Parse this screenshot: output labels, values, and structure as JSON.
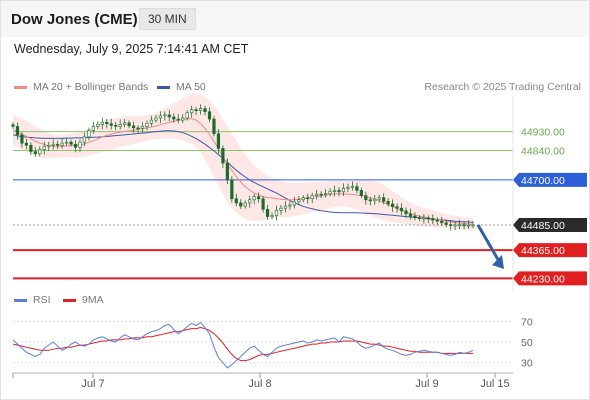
{
  "header": {
    "title": "Dow Jones (CME)",
    "timeframe": "30 MIN",
    "datetime": "Wednesday, July 9, 2025 7:14:41 AM CET"
  },
  "legend_main": {
    "ma20_label": "MA 20 + Bollinger Bands",
    "ma50_label": "MA 50",
    "credit": "Research © 2025 Trading Central"
  },
  "legend_rsi": {
    "rsi_label": "RSI",
    "ma9_label": "9MA"
  },
  "colors": {
    "ma20": "#f08a8a",
    "band_fill": "#fde3e3",
    "ma50": "#3a5ba8",
    "candle": "#1d6b2a",
    "green_level": "#8cc56b",
    "blue_level": "#2f5fd6",
    "red_level": "#e02020",
    "current_price_box": "#2a2a2a",
    "rsi_line": "#5b7fe0",
    "rsi_ma": "#e02020",
    "forecast_arrow": "#2f5fa8"
  },
  "chart_data": [
    {
      "type": "candlestick",
      "x_ticks": [
        "Jul 7",
        "Jul 8",
        "Jul 9",
        "Jul 15"
      ],
      "ylim": [
        44170,
        45100
      ],
      "levels": [
        {
          "value": 44930,
          "label": "44930.00",
          "kind": "resistance",
          "color": "#8cc56b"
        },
        {
          "value": 44840,
          "label": "44840.00",
          "kind": "resistance",
          "color": "#8cc56b"
        },
        {
          "value": 44700,
          "label": "44700.00",
          "kind": "pivot",
          "color": "#2f5fd6"
        },
        {
          "value": 44485,
          "label": "44485.00",
          "kind": "last-price",
          "color": "#2a2a2a"
        },
        {
          "value": 44365,
          "label": "44365.00",
          "kind": "support",
          "color": "#e02020"
        },
        {
          "value": 44230,
          "label": "44230.00",
          "kind": "support",
          "color": "#e02020"
        }
      ],
      "close": [
        44955,
        44915,
        44875,
        44865,
        44835,
        44825,
        44845,
        44860,
        44865,
        44870,
        44865,
        44875,
        44880,
        44870,
        44855,
        44880,
        44905,
        44935,
        44955,
        44965,
        44975,
        44968,
        44960,
        44955,
        44965,
        44972,
        44958,
        44948,
        44945,
        44955,
        44970,
        44985,
        44995,
        45005,
        45010,
        45000,
        44990,
        44985,
        44995,
        45020,
        45035,
        45030,
        45040,
        45025,
        44990,
        44920,
        44850,
        44780,
        44700,
        44610,
        44590,
        44575,
        44590,
        44605,
        44620,
        44610,
        44560,
        44525,
        44530,
        44555,
        44565,
        44575,
        44580,
        44595,
        44605,
        44615,
        44610,
        44625,
        44632,
        44630,
        44635,
        44645,
        44650,
        44643,
        44660,
        44665,
        44668,
        44650,
        44625,
        44605,
        44600,
        44608,
        44615,
        44598,
        44585,
        44572,
        44565,
        44552,
        44538,
        44527,
        44520,
        44515,
        44518,
        44515,
        44508,
        44503,
        44495,
        44487,
        44482,
        44485,
        44486,
        44482,
        44484,
        44485
      ],
      "ma20": [
        44940,
        44928,
        44918,
        44908,
        44896,
        44884,
        44876,
        44869,
        44862,
        44860,
        44860,
        44860,
        44862,
        44864,
        44865,
        44866,
        44872,
        44879,
        44887,
        44896,
        44905,
        44912,
        44918,
        44923,
        44927,
        44931,
        44934,
        44937,
        44940,
        44944,
        44948,
        44952,
        44957,
        44963,
        44969,
        44975,
        44980,
        44984,
        44988,
        44991,
        44992,
        44985,
        44968,
        44945,
        44917,
        44884,
        44848,
        44811,
        44776,
        44744,
        44715,
        44690,
        44668,
        44651,
        44638,
        44628,
        44620,
        44616,
        44614,
        44611,
        44608,
        44606,
        44605,
        44606,
        44608,
        44611,
        44614,
        44617,
        44620,
        44623,
        44626,
        44630,
        44633,
        44634,
        44633,
        44632,
        44630,
        44628,
        44625,
        44620,
        44614,
        44608,
        44600,
        44592,
        44582,
        44572,
        44563,
        44555,
        44547,
        44539,
        44532,
        44527,
        44523,
        44519,
        44515,
        44511,
        44507,
        44503,
        44499,
        44496,
        44494,
        44492,
        44490,
        44488
      ],
      "ma50": [
        44915,
        44910,
        44906,
        44904,
        44902,
        44900,
        44899,
        44898,
        44898,
        44898,
        44898,
        44898,
        44899,
        44899,
        44900,
        44900,
        44901,
        44902,
        44903,
        44904,
        44906,
        44907,
        44909,
        44911,
        44913,
        44915,
        44917,
        44919,
        44921,
        44923,
        44925,
        44928,
        44930,
        44932,
        44934,
        44934,
        44933,
        44930,
        44925,
        44918,
        44908,
        44897,
        44884,
        44870,
        44854,
        44838,
        44821,
        44803,
        44784,
        44765,
        44746,
        44729,
        44714,
        44700,
        44688,
        44677,
        44667,
        44657,
        44647,
        44637,
        44625,
        44613,
        44602,
        44591,
        44582,
        44574,
        44567,
        44562,
        44557,
        44553,
        44550,
        44547,
        44545,
        44544,
        44543,
        44543,
        44543,
        44543,
        44542,
        44541,
        44540,
        44539,
        44537,
        44535,
        44533,
        44531,
        44529,
        44527,
        44525,
        44523,
        44521,
        44519,
        44517,
        44515,
        44513,
        44511,
        44509,
        44507,
        44505,
        44503,
        44501,
        44500,
        44499,
        44498
      ],
      "bb_width": [
        70,
        72,
        74,
        74,
        72,
        70,
        68,
        64,
        60,
        56,
        54,
        54,
        54,
        56,
        58,
        60,
        62,
        64,
        66,
        70,
        72,
        74,
        74,
        74,
        72,
        70,
        68,
        66,
        64,
        62,
        62,
        62,
        64,
        68,
        72,
        78,
        84,
        92,
        100,
        110,
        120,
        130,
        140,
        150,
        160,
        168,
        174,
        178,
        180,
        178,
        172,
        164,
        154,
        144,
        134,
        124,
        114,
        104,
        96,
        90,
        86,
        84,
        82,
        80,
        78,
        76,
        74,
        72,
        70,
        68,
        66,
        64,
        62,
        60,
        60,
        62,
        66,
        72,
        76,
        80,
        84,
        86,
        86,
        84,
        80,
        74,
        68,
        62,
        56,
        52,
        48,
        46,
        44,
        42,
        40,
        38,
        36,
        34,
        32,
        32,
        30,
        30,
        30,
        30
      ]
    },
    {
      "type": "line",
      "name": "RSI",
      "ylim": [
        20,
        80
      ],
      "y_ticks": [
        70,
        50,
        30
      ],
      "rsi": [
        52,
        48,
        44,
        40,
        38,
        36,
        38,
        44,
        47,
        50,
        46,
        42,
        44,
        48,
        50,
        47,
        46,
        48,
        52,
        54,
        55,
        53,
        51,
        50,
        54,
        57,
        55,
        53,
        52,
        55,
        58,
        60,
        61,
        63,
        66,
        67,
        62,
        58,
        61,
        65,
        68,
        66,
        69,
        64,
        58,
        45,
        35,
        30,
        25,
        28,
        32,
        36,
        40,
        44,
        46,
        42,
        38,
        36,
        40,
        44,
        46,
        47,
        48,
        49,
        50,
        51,
        49,
        50,
        52,
        51,
        52,
        53,
        54,
        50,
        55,
        54,
        53,
        50,
        46,
        44,
        45,
        47,
        49,
        45,
        43,
        42,
        40,
        38,
        37,
        38,
        40,
        41,
        42,
        41,
        40,
        40,
        39,
        38,
        37,
        38,
        40,
        39,
        40,
        42
      ],
      "ma9": [
        48,
        47,
        46,
        45,
        44,
        43,
        42,
        42,
        42,
        43,
        44,
        44,
        45,
        45,
        46,
        47,
        47,
        48,
        49,
        50,
        51,
        51,
        52,
        52,
        52,
        53,
        53,
        54,
        54,
        54,
        55,
        55,
        56,
        57,
        58,
        59,
        60,
        60,
        61,
        62,
        63,
        63,
        64,
        63,
        61,
        58,
        54,
        49,
        43,
        38,
        34,
        32,
        32,
        33,
        35,
        37,
        38,
        38,
        39,
        40,
        41,
        42,
        43,
        44,
        45,
        46,
        47,
        48,
        48,
        49,
        49,
        50,
        50,
        50,
        51,
        51,
        51,
        51,
        50,
        49,
        48,
        48,
        47,
        46,
        46,
        45,
        44,
        43,
        42,
        41,
        41,
        40,
        40,
        40,
        40,
        40,
        39,
        39,
        39,
        39,
        39,
        39,
        39,
        39
      ]
    }
  ]
}
